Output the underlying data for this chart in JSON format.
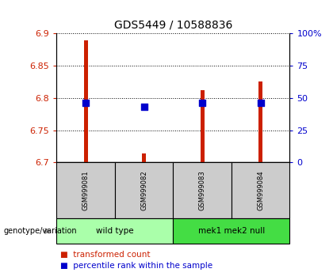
{
  "title": "GDS5449 / 10588836",
  "samples": [
    "GSM999081",
    "GSM999082",
    "GSM999083",
    "GSM999084"
  ],
  "transformed_counts": [
    6.89,
    6.714,
    6.812,
    6.826
  ],
  "percentile_ranks": [
    6.792,
    6.786,
    6.792,
    6.792
  ],
  "ylim": [
    6.7,
    6.9
  ],
  "yticks": [
    6.7,
    6.75,
    6.8,
    6.85,
    6.9
  ],
  "right_yticks": [
    0,
    25,
    50,
    75,
    100
  ],
  "right_ytick_labels": [
    "0",
    "25",
    "50",
    "75",
    "100%"
  ],
  "groups": [
    {
      "label": "wild type",
      "indices": [
        0,
        1
      ],
      "color": "#AAFFAA"
    },
    {
      "label": "mek1 mek2 null",
      "indices": [
        2,
        3
      ],
      "color": "#44DD44"
    }
  ],
  "bar_color": "#CC2000",
  "dot_color": "#0000CC",
  "bar_width": 0.07,
  "dot_size": 35,
  "sample_box_color": "#CCCCCC",
  "ylabel_color_left": "#CC2000",
  "ylabel_color_right": "#0000CC",
  "label_bar": "transformed count",
  "label_dot": "percentile rank within the sample",
  "genotype_label": "genotype/variation",
  "title_fontsize": 10,
  "tick_fontsize": 8,
  "label_fontsize": 7.5
}
